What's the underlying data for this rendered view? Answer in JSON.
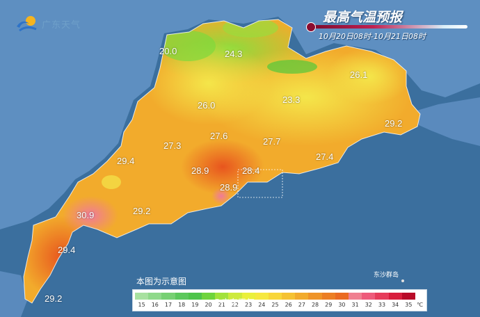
{
  "header": {
    "logo_text": "广东天气",
    "title": "最高气温预报",
    "date_range": "10月20日08时-10月21日08时"
  },
  "map": {
    "sea_color": "#3b6f9e",
    "land_color": "#5e8fc1",
    "temperature_labels": [
      {
        "id": "t1",
        "value": "20.0"
      },
      {
        "id": "t2",
        "value": "24.3"
      },
      {
        "id": "t3",
        "value": "26.1"
      },
      {
        "id": "t4",
        "value": "26.0"
      },
      {
        "id": "t5",
        "value": "23.3"
      },
      {
        "id": "t6",
        "value": "29.2"
      },
      {
        "id": "t7",
        "value": "27.6"
      },
      {
        "id": "t8",
        "value": "27.7"
      },
      {
        "id": "t9",
        "value": "27.3"
      },
      {
        "id": "t10",
        "value": "29.4"
      },
      {
        "id": "t11",
        "value": "27.4"
      },
      {
        "id": "t12",
        "value": "28.9"
      },
      {
        "id": "t13",
        "value": "28.4"
      },
      {
        "id": "t14",
        "value": "28.9"
      },
      {
        "id": "t15",
        "value": "30.9"
      },
      {
        "id": "t16",
        "value": "29.2"
      },
      {
        "id": "t17",
        "value": "29.4"
      },
      {
        "id": "t18",
        "value": "29.2"
      }
    ],
    "island_label": "东沙群岛",
    "note": "本图为示意图",
    "watermark": "@广东天气"
  },
  "legend": {
    "unit": "℃",
    "items": [
      {
        "label": "15",
        "color": "#a8e1a0"
      },
      {
        "label": "16",
        "color": "#8fd98a"
      },
      {
        "label": "17",
        "color": "#77d073"
      },
      {
        "label": "18",
        "color": "#5cc85c"
      },
      {
        "label": "19",
        "color": "#4ec44a"
      },
      {
        "label": "20",
        "color": "#6fd43c"
      },
      {
        "label": "21",
        "color": "#a2e23a"
      },
      {
        "label": "22",
        "color": "#cdea3c"
      },
      {
        "label": "23",
        "color": "#eaf03c"
      },
      {
        "label": "24",
        "color": "#f6e840"
      },
      {
        "label": "25",
        "color": "#f8d63a"
      },
      {
        "label": "26",
        "color": "#f5c232"
      },
      {
        "label": "27",
        "color": "#f2ab2c"
      },
      {
        "label": "28",
        "color": "#ef9428"
      },
      {
        "label": "29",
        "color": "#ec7e24"
      },
      {
        "label": "30",
        "color": "#ea6a22"
      },
      {
        "label": "31",
        "color": "#f08090"
      },
      {
        "label": "32",
        "color": "#ee5b7a"
      },
      {
        "label": "33",
        "color": "#e63c5a"
      },
      {
        "label": "34",
        "color": "#d81e3c"
      },
      {
        "label": "35",
        "color": "#b80a28"
      }
    ]
  }
}
